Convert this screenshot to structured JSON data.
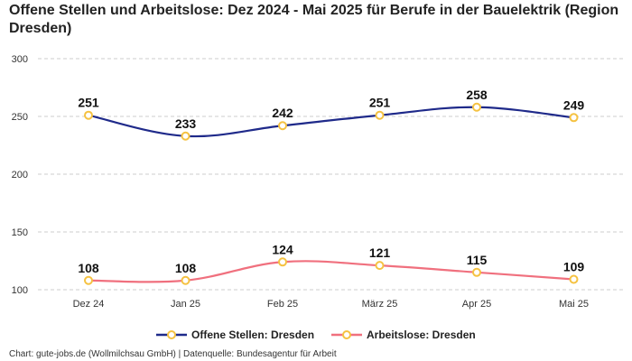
{
  "title": "Offene Stellen und Arbeitslose: Dez 2024 - Mai 2025 für Berufe in der Bauelektrik (Region Dresden)",
  "footer": "Chart: gute-jobs.de (Wollmilchsau GmbH) | Datenquelle: Bundesagentur für Arbeit",
  "colors": {
    "series1": "#1f2a8a",
    "series2": "#f0707e",
    "marker": "#f5c242",
    "grid": "#cccccc"
  },
  "chart_data": {
    "type": "line",
    "categories": [
      "Dez 24",
      "Jan 25",
      "Feb 25",
      "März 25",
      "Apr 25",
      "Mai 25"
    ],
    "ylim": [
      100,
      300
    ],
    "yticks": [
      100,
      150,
      200,
      250,
      300
    ],
    "grid": true,
    "legend_position": "bottom",
    "series": [
      {
        "name": "Offene Stellen: Dresden",
        "values": [
          251,
          233,
          242,
          251,
          258,
          249
        ]
      },
      {
        "name": "Arbeitslose: Dresden",
        "values": [
          108,
          108,
          124,
          121,
          115,
          109
        ]
      }
    ]
  }
}
